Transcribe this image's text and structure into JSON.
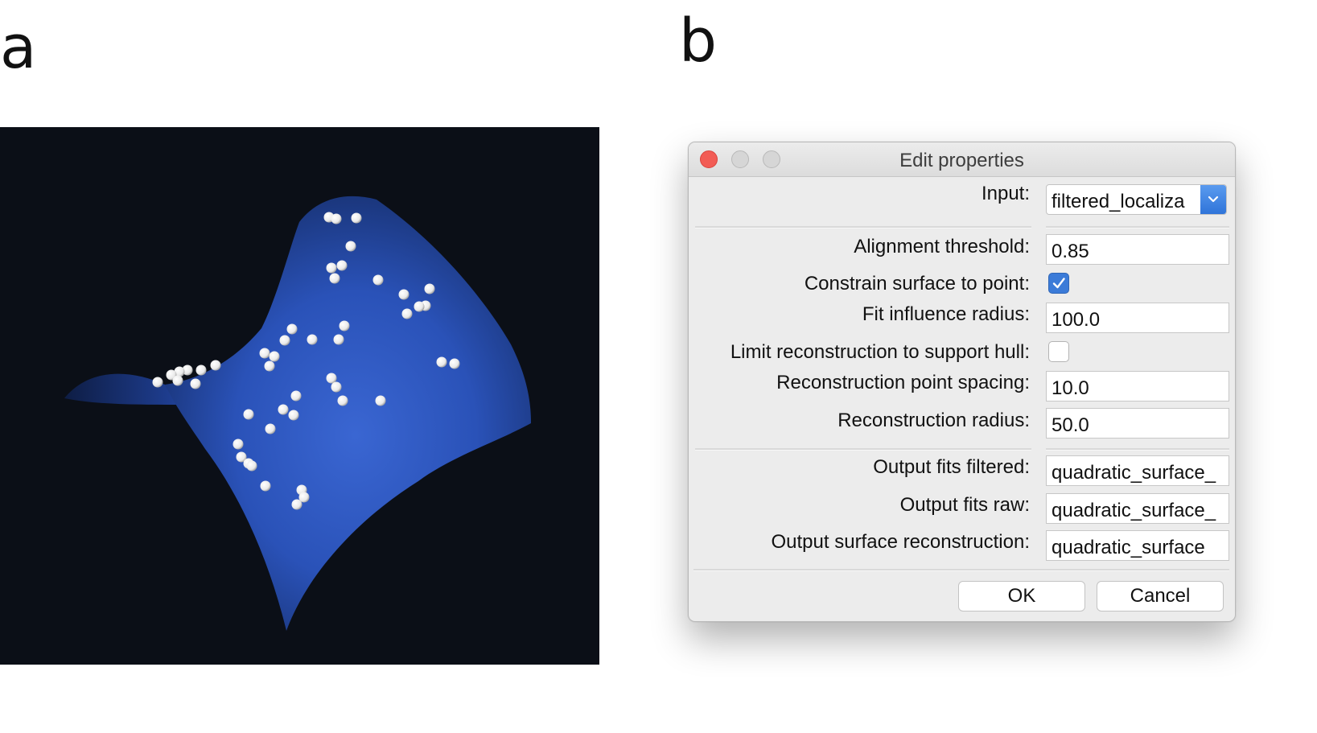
{
  "figure_labels": {
    "a": "a",
    "b": "b"
  },
  "render_panel": {
    "surface_color": "#2a55c0",
    "background_color": "#0b0f17",
    "point_color": "#ffffff"
  },
  "dialog": {
    "title": "Edit properties",
    "input": {
      "label": "Input:",
      "value": "filtered_localiza"
    },
    "alignment_threshold": {
      "label": "Alignment threshold:",
      "value": "0.85"
    },
    "constrain_surface": {
      "label": "Constrain surface to point:",
      "checked": true
    },
    "fit_influence_radius": {
      "label": "Fit influence radius:",
      "value": "100.0"
    },
    "limit_reconstruction": {
      "label": "Limit reconstruction to support hull:",
      "checked": false
    },
    "reconstruction_point_spacing": {
      "label": "Reconstruction point spacing:",
      "value": "10.0"
    },
    "reconstruction_radius": {
      "label": "Reconstruction radius:",
      "value": "50.0"
    },
    "output_fits_filtered": {
      "label": "Output fits filtered:",
      "value": "quadratic_surface_"
    },
    "output_fits_raw": {
      "label": "Output fits raw:",
      "value": "quadratic_surface_"
    },
    "output_surface_reconstruction": {
      "label": "Output surface reconstruction:",
      "value": "quadratic_surface"
    },
    "ok_label": "OK",
    "cancel_label": "Cancel"
  },
  "colors": {
    "checkbox_accent": "#3b7bd8",
    "close_button": "#f25c55"
  }
}
